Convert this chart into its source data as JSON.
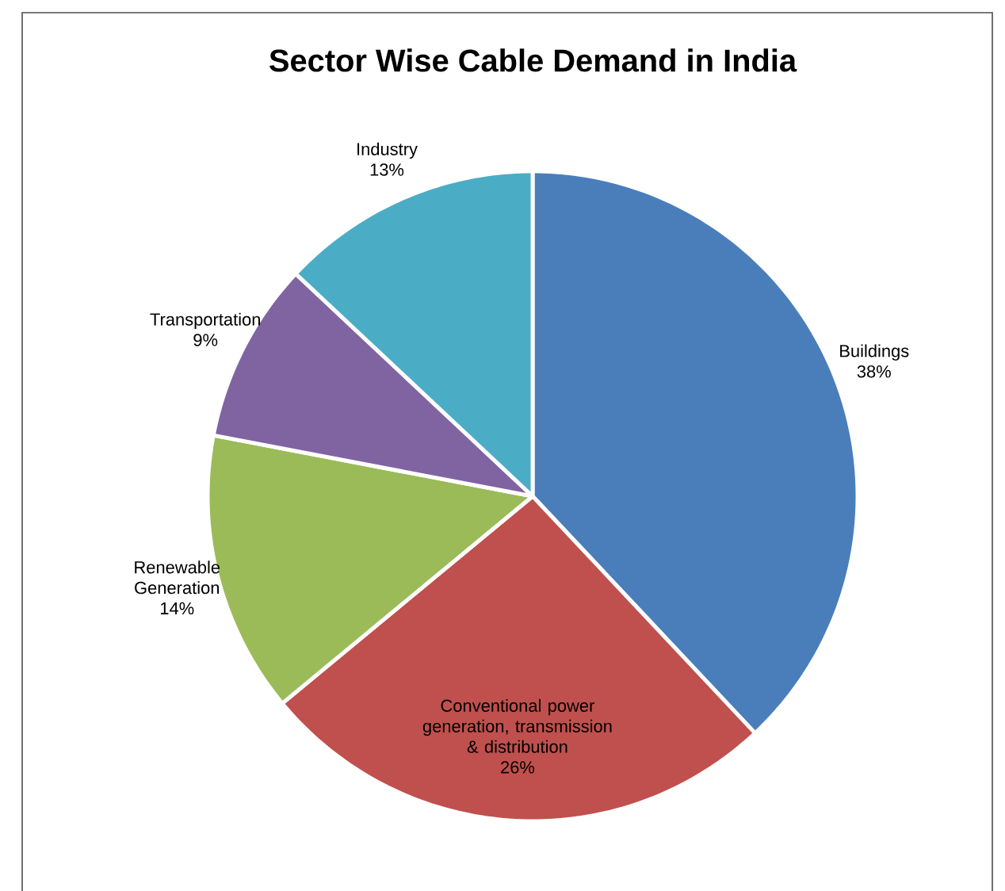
{
  "chart_data": {
    "type": "pie",
    "title": "Sector Wise Cable Demand in India",
    "categories": [
      "Buildings",
      "Conventional power generation, transmission & distribution",
      "Renewable Generation",
      "Transportation",
      "Industry"
    ],
    "values": [
      38,
      26,
      14,
      9,
      13
    ],
    "value_labels": [
      "38%",
      "26%",
      "14%",
      "9%",
      "13%"
    ],
    "colors": [
      "#4a7ebb",
      "#c0504d",
      "#9bbb59",
      "#8064a2",
      "#4bacc6"
    ]
  }
}
